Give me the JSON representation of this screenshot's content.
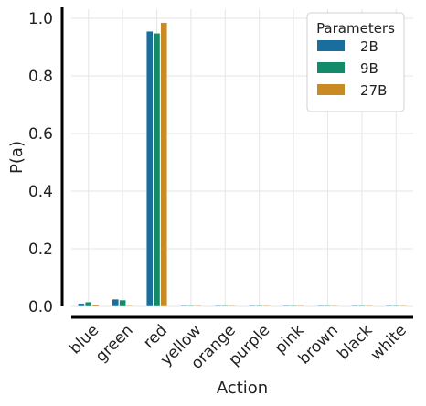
{
  "chart_data": {
    "type": "bar",
    "xlabel": "Action",
    "ylabel": "P(a)",
    "ylim": [
      0,
      1.0
    ],
    "yticks": [
      "0.0",
      "0.2",
      "0.4",
      "0.6",
      "0.8",
      "1.0"
    ],
    "yticks_values": [
      0,
      0.2,
      0.4,
      0.6,
      0.8,
      1.0
    ],
    "grid": true,
    "categories": [
      "blue",
      "green",
      "red",
      "yellow",
      "orange",
      "purple",
      "pink",
      "brown",
      "black",
      "white"
    ],
    "series": [
      {
        "name": "2B",
        "color": "#1a6e9e",
        "values": [
          0.01,
          0.025,
          0.955,
          0.0,
          0.0,
          0.0,
          0.0,
          0.0,
          0.0,
          0.0
        ]
      },
      {
        "name": "9B",
        "color": "#138a6a",
        "values": [
          0.015,
          0.022,
          0.948,
          0.0,
          0.0,
          0.0,
          0.0,
          0.0,
          0.0,
          0.0
        ]
      },
      {
        "name": "27B",
        "color": "#c98a24",
        "values": [
          0.006,
          0.0,
          0.985,
          0.0,
          0.0,
          0.0,
          0.0,
          0.0,
          0.0,
          0.0
        ]
      }
    ],
    "legend": {
      "title": "Parameters",
      "placement": "top-right"
    }
  }
}
